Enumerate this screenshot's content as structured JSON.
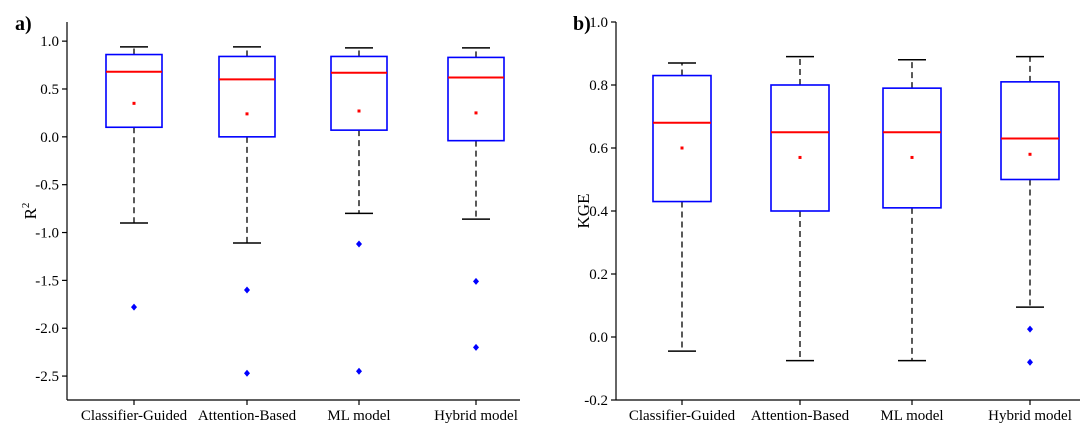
{
  "chart_data": [
    {
      "panel_label": "a)",
      "type": "box",
      "ylabel": "R",
      "ylabel_superscript": "2",
      "ylim": [
        -2.75,
        1.2
      ],
      "yticks": [
        1.0,
        0.5,
        0.0,
        -0.5,
        -1.0,
        -1.5,
        -2.0,
        -2.5
      ],
      "ytick_labels": [
        "1.0",
        "0.5",
        "0.0",
        "-0.5",
        "-1.0",
        "-1.5",
        "-2.0",
        "-2.5"
      ],
      "categories": [
        "Classifier-Guided",
        "Attention-Based",
        "ML model",
        "Hybrid model"
      ],
      "boxes": [
        {
          "whisker_low": -0.9,
          "q1": 0.1,
          "median": 0.68,
          "q3": 0.86,
          "whisker_high": 0.94,
          "mean": 0.35,
          "outliers": [
            -1.78
          ]
        },
        {
          "whisker_low": -1.11,
          "q1": 0.0,
          "median": 0.6,
          "q3": 0.84,
          "whisker_high": 0.94,
          "mean": 0.24,
          "outliers": [
            -1.6,
            -2.47
          ]
        },
        {
          "whisker_low": -0.8,
          "q1": 0.07,
          "median": 0.67,
          "q3": 0.84,
          "whisker_high": 0.93,
          "mean": 0.27,
          "outliers": [
            -1.12,
            -2.45
          ]
        },
        {
          "whisker_low": -0.86,
          "q1": -0.04,
          "median": 0.62,
          "q3": 0.83,
          "whisker_high": 0.93,
          "mean": 0.25,
          "outliers": [
            -1.51,
            -2.2
          ]
        }
      ]
    },
    {
      "panel_label": "b)",
      "type": "box",
      "ylabel": "KGE",
      "ylabel_superscript": "",
      "ylim": [
        -0.2,
        1.0
      ],
      "yticks": [
        1.0,
        0.8,
        0.6,
        0.4,
        0.2,
        0.0,
        -0.2
      ],
      "ytick_labels": [
        "1.0",
        "0.8",
        "0.6",
        "0.4",
        "0.2",
        "0.0",
        "-0.2"
      ],
      "categories": [
        "Classifier-Guided",
        "Attention-Based",
        "ML model",
        "Hybrid model"
      ],
      "boxes": [
        {
          "whisker_low": -0.045,
          "q1": 0.43,
          "median": 0.68,
          "q3": 0.83,
          "whisker_high": 0.87,
          "mean": 0.6,
          "outliers": []
        },
        {
          "whisker_low": -0.075,
          "q1": 0.4,
          "median": 0.65,
          "q3": 0.8,
          "whisker_high": 0.89,
          "mean": 0.57,
          "outliers": []
        },
        {
          "whisker_low": -0.075,
          "q1": 0.41,
          "median": 0.65,
          "q3": 0.79,
          "whisker_high": 0.88,
          "mean": 0.57,
          "outliers": []
        },
        {
          "whisker_low": 0.095,
          "q1": 0.5,
          "median": 0.63,
          "q3": 0.81,
          "whisker_high": 0.89,
          "mean": 0.58,
          "outliers": [
            0.025,
            -0.08
          ]
        }
      ]
    }
  ],
  "colors": {
    "box": "#0000ff",
    "median": "#ff0000",
    "mean": "#ff0000",
    "outlier": "#0000ff",
    "whisker": "#000000"
  }
}
